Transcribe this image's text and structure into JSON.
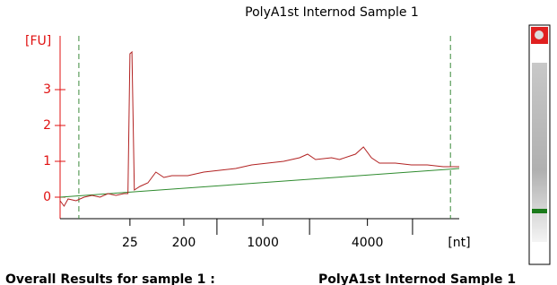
{
  "chart_data": {
    "type": "line",
    "title": "PolyA1st Internod Sample 1",
    "y_label": "[FU]",
    "x_label": "[nt]",
    "xlim": [
      0,
      100
    ],
    "ylim": [
      -0.6,
      4.5
    ],
    "yticks": [
      0,
      1,
      2,
      3
    ],
    "xticks": [
      {
        "value": 17.5,
        "label": "25"
      },
      {
        "value": 31,
        "label": "200"
      },
      {
        "value": 50.8,
        "label": "1000"
      },
      {
        "value": 77,
        "label": "4000"
      }
    ],
    "minor_xticks": [
      39.3,
      62.5,
      88.3
    ],
    "marker_lines": {
      "color": "#3a8a3a",
      "x": [
        4.7,
        97.8
      ]
    },
    "series": [
      {
        "color": "#b22222",
        "x": [
          0,
          1,
          2,
          4,
          6,
          8,
          10,
          12,
          14,
          16,
          17,
          17.5,
          18,
          18.6,
          20,
          22,
          24,
          26,
          28,
          32,
          36,
          40,
          44,
          48,
          52,
          56,
          60,
          62,
          64,
          68,
          70,
          74,
          76,
          78,
          80,
          84,
          88,
          92,
          96,
          100
        ],
        "values": [
          -0.1,
          -0.25,
          -0.05,
          -0.1,
          0.0,
          0.05,
          0.0,
          0.1,
          0.05,
          0.1,
          0.1,
          4.0,
          4.05,
          0.2,
          0.3,
          0.4,
          0.7,
          0.55,
          0.6,
          0.6,
          0.7,
          0.75,
          0.8,
          0.9,
          0.95,
          1.0,
          1.1,
          1.2,
          1.05,
          1.1,
          1.05,
          1.2,
          1.4,
          1.1,
          0.95,
          0.95,
          0.9,
          0.9,
          0.85,
          0.85
        ]
      },
      {
        "color": "#2e8b2e",
        "x": [
          0,
          100
        ],
        "values": [
          0,
          0.8
        ]
      }
    ]
  },
  "footer": {
    "left": "Overall Results for sample 1 :",
    "right": "PolyA1st Internod Sample 1"
  }
}
